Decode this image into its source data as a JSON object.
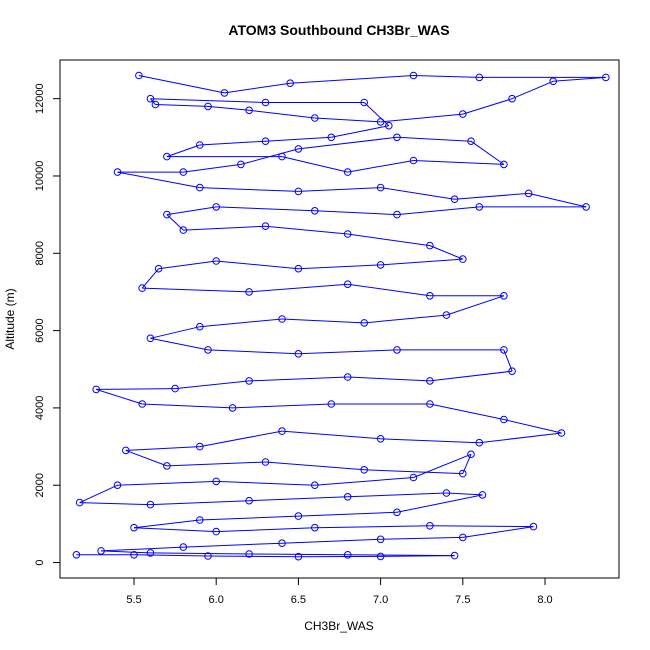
{
  "chart_data": {
    "type": "scatter",
    "title": "ATOM3 Southbound CH3Br_WAS",
    "xlabel": "CH3Br_WAS",
    "ylabel": "Altitude (m)",
    "xlim": [
      5.05,
      8.45
    ],
    "ylim": [
      -400,
      13000
    ],
    "x_ticks": [
      "5.5",
      "6.0",
      "6.5",
      "7.0",
      "7.5",
      "8.0"
    ],
    "y_ticks": [
      "0",
      "2000",
      "4000",
      "6000",
      "8000",
      "10000",
      "12000"
    ],
    "grid": false,
    "legend": "none",
    "series": [
      {
        "color": "#0000ff",
        "marker": "open-circle",
        "line": true,
        "points": [
          [
            5.53,
            12600
          ],
          [
            6.05,
            12150
          ],
          [
            6.45,
            12400
          ],
          [
            7.2,
            12600
          ],
          [
            7.6,
            12550
          ],
          [
            8.37,
            12550
          ],
          [
            8.05,
            12450
          ],
          [
            7.8,
            12000
          ],
          [
            7.5,
            11600
          ],
          [
            7.0,
            11400
          ],
          [
            6.6,
            11500
          ],
          [
            6.2,
            11700
          ],
          [
            5.95,
            11800
          ],
          [
            5.63,
            11850
          ],
          [
            5.6,
            12000
          ],
          [
            6.3,
            11900
          ],
          [
            6.9,
            11900
          ],
          [
            7.05,
            11300
          ],
          [
            6.7,
            11000
          ],
          [
            6.3,
            10900
          ],
          [
            5.9,
            10800
          ],
          [
            5.7,
            10500
          ],
          [
            6.4,
            10500
          ],
          [
            6.8,
            10100
          ],
          [
            7.2,
            10400
          ],
          [
            7.75,
            10300
          ],
          [
            7.55,
            10900
          ],
          [
            7.1,
            11000
          ],
          [
            6.5,
            10700
          ],
          [
            6.15,
            10300
          ],
          [
            5.8,
            10100
          ],
          [
            5.4,
            10100
          ],
          [
            5.9,
            9700
          ],
          [
            6.5,
            9600
          ],
          [
            7.0,
            9700
          ],
          [
            7.45,
            9400
          ],
          [
            7.9,
            9550
          ],
          [
            8.25,
            9200
          ],
          [
            7.6,
            9200
          ],
          [
            7.1,
            9000
          ],
          [
            6.6,
            9100
          ],
          [
            6.0,
            9200
          ],
          [
            5.7,
            9000
          ],
          [
            5.8,
            8600
          ],
          [
            6.3,
            8700
          ],
          [
            6.8,
            8500
          ],
          [
            7.3,
            8200
          ],
          [
            7.5,
            7850
          ],
          [
            7.0,
            7700
          ],
          [
            6.5,
            7600
          ],
          [
            6.0,
            7800
          ],
          [
            5.65,
            7600
          ],
          [
            5.55,
            7100
          ],
          [
            6.2,
            7000
          ],
          [
            6.8,
            7200
          ],
          [
            7.3,
            6900
          ],
          [
            7.75,
            6900
          ],
          [
            7.4,
            6400
          ],
          [
            6.9,
            6200
          ],
          [
            6.4,
            6300
          ],
          [
            5.9,
            6100
          ],
          [
            5.6,
            5800
          ],
          [
            5.95,
            5500
          ],
          [
            6.5,
            5400
          ],
          [
            7.1,
            5500
          ],
          [
            7.75,
            5500
          ],
          [
            7.8,
            4950
          ],
          [
            7.3,
            4700
          ],
          [
            6.8,
            4800
          ],
          [
            6.2,
            4700
          ],
          [
            5.75,
            4500
          ],
          [
            5.27,
            4480
          ],
          [
            5.55,
            4100
          ],
          [
            6.1,
            4000
          ],
          [
            6.7,
            4100
          ],
          [
            7.3,
            4100
          ],
          [
            7.75,
            3700
          ],
          [
            8.1,
            3350
          ],
          [
            7.6,
            3100
          ],
          [
            7.0,
            3200
          ],
          [
            6.4,
            3400
          ],
          [
            5.9,
            3000
          ],
          [
            5.45,
            2900
          ],
          [
            5.7,
            2500
          ],
          [
            6.3,
            2600
          ],
          [
            6.9,
            2400
          ],
          [
            7.5,
            2300
          ],
          [
            7.55,
            2800
          ],
          [
            7.2,
            2200
          ],
          [
            6.6,
            2000
          ],
          [
            6.0,
            2100
          ],
          [
            5.4,
            2000
          ],
          [
            5.17,
            1550
          ],
          [
            5.6,
            1500
          ],
          [
            6.2,
            1600
          ],
          [
            6.8,
            1700
          ],
          [
            7.4,
            1800
          ],
          [
            7.62,
            1750
          ],
          [
            7.1,
            1300
          ],
          [
            6.5,
            1200
          ],
          [
            5.9,
            1100
          ],
          [
            5.5,
            900
          ],
          [
            6.0,
            800
          ],
          [
            6.6,
            900
          ],
          [
            7.3,
            950
          ],
          [
            7.93,
            930
          ],
          [
            7.5,
            650
          ],
          [
            7.0,
            600
          ],
          [
            6.4,
            500
          ],
          [
            5.8,
            400
          ],
          [
            5.3,
            300
          ],
          [
            5.6,
            250
          ],
          [
            6.2,
            220
          ],
          [
            6.8,
            200
          ],
          [
            7.45,
            180
          ],
          [
            7.0,
            160
          ],
          [
            6.5,
            150
          ],
          [
            5.95,
            170
          ],
          [
            5.5,
            200
          ],
          [
            5.15,
            200
          ]
        ]
      }
    ]
  }
}
